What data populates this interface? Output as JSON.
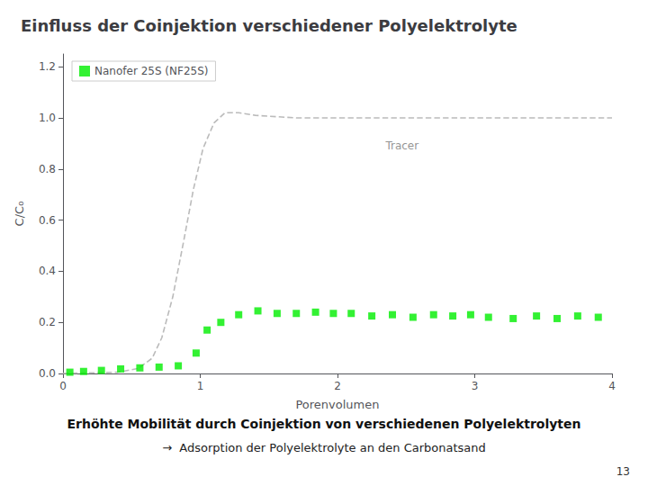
{
  "chart_data": {
    "type": "scatter",
    "title": "Einfluss der Coinjektion verschiedener Polyelektrolyte",
    "x_label": "Porenvolumen",
    "y_label": "C/C₀",
    "xlim": [
      0,
      4
    ],
    "ylim": [
      0,
      1.25
    ],
    "xticks": [
      0,
      1,
      2,
      3,
      4
    ],
    "yticks": [
      {
        "value": 0.0,
        "label": "0.0"
      },
      0.2,
      0.4,
      0.6,
      0.8,
      {
        "value": 1.0,
        "label": "1.0"
      },
      1.2
    ],
    "grid": false,
    "legend": "upper left",
    "series": [
      {
        "type": "line",
        "line_style": "dashed",
        "color": "#bbbbbb",
        "x": [
          0.0,
          0.4,
          0.55,
          0.65,
          0.72,
          0.8,
          0.88,
          0.95,
          1.02,
          1.1,
          1.18,
          1.28,
          1.4,
          1.55,
          1.7,
          1.9,
          2.1,
          2.5,
          3.0,
          3.5,
          4.0
        ],
        "values": [
          0.0,
          0.005,
          0.02,
          0.06,
          0.14,
          0.3,
          0.52,
          0.72,
          0.88,
          0.98,
          1.02,
          1.02,
          1.01,
          1.005,
          1.0,
          1.0,
          1.0,
          1.0,
          1.0,
          1.0,
          1.0
        ]
      },
      {
        "name": "Nanofer 25S (NF25S)",
        "type": "scatter",
        "marker": "square",
        "color": "#00ee00",
        "x": [
          0.05,
          0.15,
          0.28,
          0.42,
          0.56,
          0.7,
          0.84,
          0.97,
          1.05,
          1.15,
          1.28,
          1.42,
          1.56,
          1.7,
          1.84,
          1.97,
          2.1,
          2.25,
          2.4,
          2.55,
          2.7,
          2.84,
          2.97,
          3.1,
          3.28,
          3.45,
          3.6,
          3.75,
          3.9
        ],
        "values": [
          0.005,
          0.008,
          0.012,
          0.018,
          0.022,
          0.025,
          0.03,
          0.08,
          0.17,
          0.2,
          0.23,
          0.245,
          0.235,
          0.235,
          0.24,
          0.235,
          0.235,
          0.225,
          0.23,
          0.22,
          0.23,
          0.225,
          0.23,
          0.22,
          0.215,
          0.225,
          0.215,
          0.225,
          0.22
        ]
      }
    ],
    "annotations": [
      {
        "text": "Tracer",
        "x": 2.35,
        "y": 0.89
      },
      {
        "text": "Erhöhte Mobilität durch Coinjektion von verschiedenen Polyelektrolyten"
      },
      {
        "text": "→  Adsorption der Polyelektrolyte an den Carbonatsand"
      },
      {
        "text": "13"
      }
    ]
  }
}
